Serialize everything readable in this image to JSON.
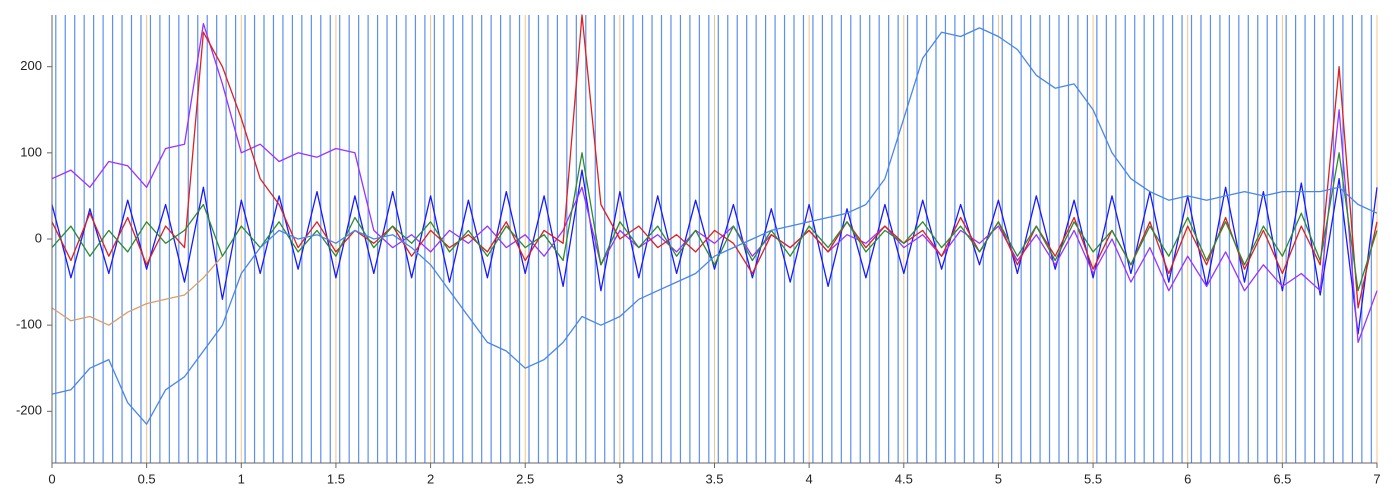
{
  "chart_data": {
    "type": "line",
    "xlim": [
      0,
      7
    ],
    "ylim": [
      -260,
      260
    ],
    "xticks": [
      0,
      0.5,
      1,
      1.5,
      2,
      2.5,
      3,
      3.5,
      4,
      4.5,
      5,
      5.5,
      6,
      6.5,
      7
    ],
    "yticks": [
      -200,
      -100,
      0,
      100,
      200
    ],
    "grid": true,
    "grid_color": "#f3c48c",
    "event_lines": {
      "color": "#5b8ff0",
      "x": [
        0.02,
        0.07,
        0.12,
        0.17,
        0.22,
        0.27,
        0.32,
        0.37,
        0.42,
        0.47,
        0.52,
        0.57,
        0.62,
        0.67,
        0.72,
        0.77,
        0.82,
        0.87,
        0.92,
        0.97,
        1.02,
        1.07,
        1.12,
        1.17,
        1.22,
        1.27,
        1.32,
        1.37,
        1.42,
        1.47,
        1.52,
        1.57,
        1.62,
        1.67,
        1.72,
        1.77,
        1.82,
        1.87,
        1.92,
        1.97,
        2.02,
        2.07,
        2.12,
        2.17,
        2.22,
        2.27,
        2.32,
        2.37,
        2.42,
        2.47,
        2.52,
        2.57,
        2.62,
        2.67,
        2.72,
        2.77,
        2.82,
        2.87,
        2.92,
        2.97,
        3.02,
        3.07,
        3.12,
        3.17,
        3.22,
        3.27,
        3.32,
        3.37,
        3.42,
        3.47,
        3.52,
        3.57,
        3.62,
        3.67,
        3.72,
        3.77,
        3.82,
        3.87,
        3.92,
        3.97,
        4.02,
        4.07,
        4.12,
        4.17,
        4.22,
        4.27,
        4.32,
        4.37,
        4.42,
        4.47,
        4.52,
        4.57,
        4.62,
        4.67,
        4.72,
        4.77,
        4.82,
        4.87,
        4.92,
        4.97,
        5.02,
        5.07,
        5.12,
        5.17,
        5.22,
        5.27,
        5.32,
        5.37,
        5.42,
        5.47,
        5.52,
        5.57,
        5.62,
        5.67,
        5.72,
        5.77,
        5.82,
        5.87,
        5.92,
        5.97,
        6.02,
        6.07,
        6.12,
        6.17,
        6.22,
        6.27,
        6.32,
        6.37,
        6.42,
        6.47,
        6.52,
        6.57,
        6.62,
        6.67,
        6.72,
        6.77,
        6.82,
        6.87,
        6.92,
        6.97
      ]
    },
    "x": [
      0,
      0.1,
      0.2,
      0.3,
      0.4,
      0.5,
      0.6,
      0.7,
      0.8,
      0.9,
      1,
      1.1,
      1.2,
      1.3,
      1.4,
      1.5,
      1.6,
      1.7,
      1.8,
      1.9,
      2,
      2.1,
      2.2,
      2.3,
      2.4,
      2.5,
      2.6,
      2.7,
      2.8,
      2.9,
      3,
      3.1,
      3.2,
      3.3,
      3.4,
      3.5,
      3.6,
      3.7,
      3.8,
      3.9,
      4,
      4.1,
      4.2,
      4.3,
      4.4,
      4.5,
      4.6,
      4.7,
      4.8,
      4.9,
      5,
      5.1,
      5.2,
      5.3,
      5.4,
      5.5,
      5.6,
      5.7,
      5.8,
      5.9,
      6,
      6.1,
      6.2,
      6.3,
      6.4,
      6.5,
      6.6,
      6.7,
      6.8,
      6.9,
      7
    ],
    "series": [
      {
        "color": "#1a1aff",
        "values": [
          40,
          -45,
          35,
          -40,
          45,
          -35,
          40,
          -50,
          60,
          -70,
          45,
          -40,
          50,
          -35,
          55,
          -45,
          50,
          -40,
          55,
          -45,
          50,
          -50,
          45,
          -45,
          55,
          -40,
          50,
          -55,
          80,
          -60,
          55,
          -45,
          50,
          -40,
          45,
          -35,
          40,
          -45,
          35,
          -50,
          40,
          -55,
          35,
          -45,
          40,
          -40,
          45,
          -35,
          40,
          -30,
          45,
          -40,
          50,
          -35,
          45,
          -45,
          50,
          -40,
          55,
          -50,
          50,
          -55,
          60,
          -50,
          55,
          -60,
          65,
          -65,
          70,
          -110,
          60
        ]
      },
      {
        "color": "#d9a066",
        "values": [
          -80,
          -95,
          -90,
          -100,
          -85,
          -75,
          -70,
          -65,
          -45,
          -20,
          null,
          null,
          null,
          null,
          null,
          null,
          null,
          null,
          null,
          null,
          null,
          null,
          null,
          null,
          null,
          null,
          null,
          null,
          null,
          null,
          null,
          null,
          null,
          null,
          null,
          null,
          null,
          null,
          null,
          null,
          null,
          null,
          null,
          null,
          null,
          null,
          null,
          null,
          null,
          null,
          null,
          null,
          null,
          null,
          null,
          null,
          null,
          null,
          null,
          null,
          null,
          null,
          null,
          null,
          null,
          null,
          null,
          null,
          null,
          null,
          null
        ]
      },
      {
        "color": "#9933ff",
        "values": [
          70,
          80,
          60,
          90,
          85,
          60,
          105,
          110,
          250,
          180,
          100,
          110,
          90,
          100,
          95,
          105,
          100,
          10,
          -10,
          5,
          -15,
          10,
          -5,
          15,
          -10,
          5,
          -20,
          10,
          60,
          -30,
          10,
          -10,
          5,
          -15,
          10,
          -5,
          15,
          -20,
          5,
          -10,
          10,
          -15,
          5,
          -5,
          15,
          -10,
          5,
          -20,
          10,
          -5,
          15,
          -25,
          5,
          -30,
          10,
          -40,
          0,
          -50,
          -10,
          -60,
          -20,
          -55,
          -15,
          -60,
          -30,
          -55,
          -40,
          -60,
          150,
          -120,
          -60
        ]
      },
      {
        "color": "#e02020",
        "values": [
          20,
          -25,
          30,
          -20,
          25,
          -30,
          15,
          -10,
          240,
          200,
          140,
          70,
          40,
          -10,
          20,
          -15,
          10,
          -5,
          15,
          -20,
          10,
          -10,
          5,
          -15,
          20,
          -25,
          10,
          -5,
          260,
          40,
          0,
          15,
          -10,
          5,
          -15,
          10,
          -5,
          -40,
          5,
          -10,
          10,
          -15,
          20,
          -10,
          15,
          -5,
          10,
          -20,
          25,
          -15,
          20,
          -30,
          15,
          -20,
          25,
          -35,
          10,
          -30,
          20,
          -40,
          15,
          -30,
          25,
          -35,
          10,
          -40,
          15,
          -30,
          200,
          -80,
          20
        ]
      },
      {
        "color": "#2e8b2e",
        "values": [
          -10,
          15,
          -20,
          10,
          -15,
          20,
          -5,
          10,
          40,
          -20,
          15,
          -10,
          20,
          -15,
          10,
          -20,
          25,
          -10,
          15,
          -5,
          20,
          -15,
          10,
          -20,
          15,
          -10,
          5,
          -25,
          100,
          -30,
          20,
          -10,
          15,
          -20,
          10,
          -30,
          15,
          -25,
          10,
          -20,
          15,
          -10,
          20,
          -15,
          10,
          -5,
          20,
          -10,
          15,
          -15,
          20,
          -20,
          15,
          -25,
          20,
          -15,
          10,
          -30,
          15,
          -20,
          25,
          -25,
          20,
          -30,
          15,
          -20,
          30,
          -25,
          100,
          -60,
          10
        ]
      },
      {
        "color": "#4a86e8",
        "values": [
          -180,
          -175,
          -150,
          -140,
          -190,
          -215,
          -175,
          -160,
          -130,
          -100,
          -40,
          -10,
          10,
          0,
          5,
          -5,
          10,
          0,
          5,
          -10,
          -30,
          -60,
          -90,
          -120,
          -130,
          -150,
          -140,
          -120,
          -90,
          -100,
          -90,
          -70,
          -60,
          -50,
          -40,
          -20,
          -10,
          0,
          10,
          15,
          20,
          25,
          30,
          40,
          70,
          140,
          210,
          240,
          235,
          245,
          235,
          220,
          190,
          175,
          180,
          150,
          100,
          70,
          55,
          45,
          50,
          45,
          50,
          55,
          50,
          55,
          55,
          55,
          60,
          40,
          30
        ]
      }
    ]
  }
}
